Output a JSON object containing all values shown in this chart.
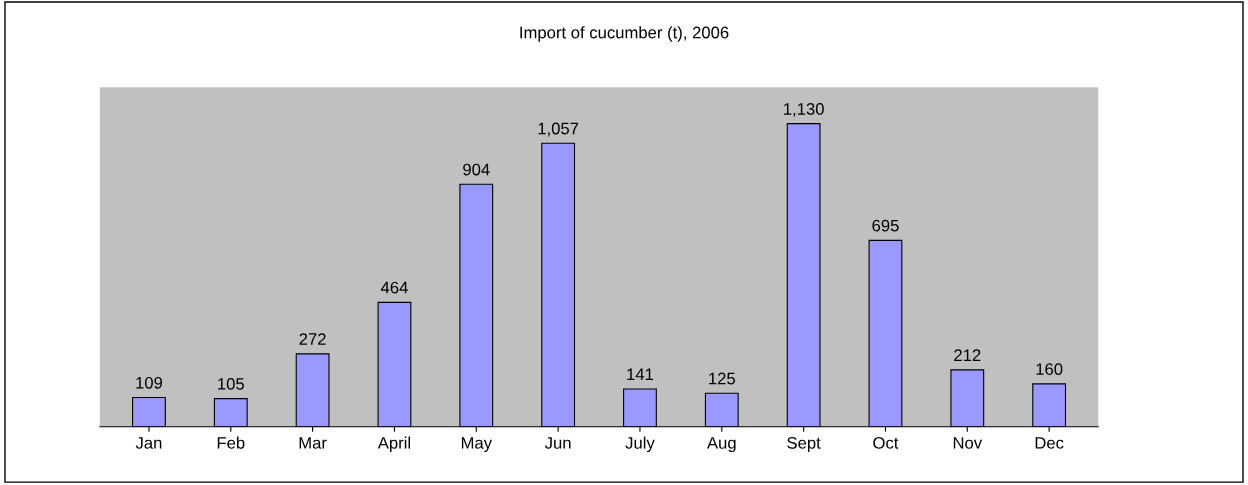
{
  "chart_data": {
    "type": "bar",
    "title": "Import of cucumber (t), 2006",
    "categories": [
      "Jan",
      "Feb",
      "Mar",
      "April",
      "May",
      "Jun",
      "July",
      "Aug",
      "Sept",
      "Oct",
      "Nov",
      "Dec"
    ],
    "values": [
      109,
      105,
      272,
      464,
      904,
      1057,
      141,
      125,
      1130,
      695,
      212,
      160
    ],
    "value_labels": [
      "109",
      "105",
      "272",
      "464",
      "904",
      "1,057",
      "141",
      "125",
      "1,130",
      "695",
      "212",
      "160"
    ],
    "color": "#9999ff",
    "tick_labels": "x"
  }
}
